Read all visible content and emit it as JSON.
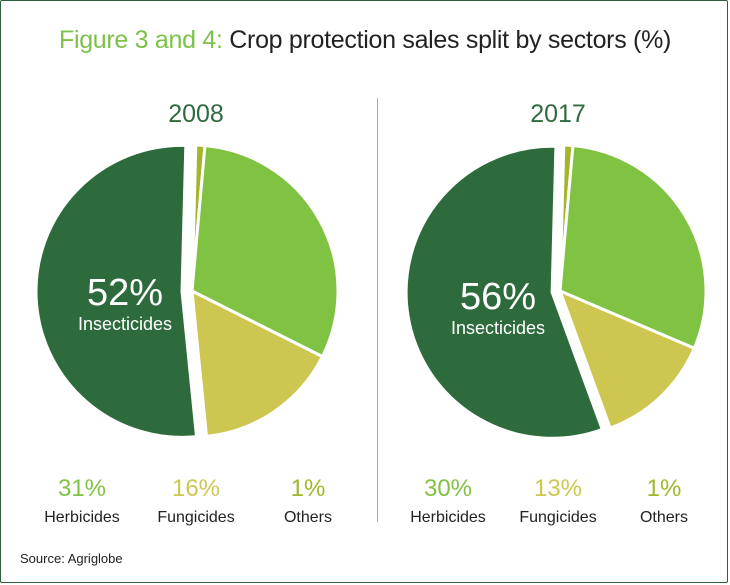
{
  "title": {
    "prefix": "Figure 3 and 4:",
    "rest": "Crop protection sales split by sectors (%)"
  },
  "source": "Source: Agriglobe",
  "colors": {
    "insecticides": "#2e6b3c",
    "herbicides": "#80c342",
    "fungicides": "#cdc751",
    "others": "#a3b52a"
  },
  "chart_data": [
    {
      "type": "pie",
      "title": "2008",
      "slices": [
        {
          "label": "Insecticides",
          "value": 52,
          "display": "52%"
        },
        {
          "label": "Herbicides",
          "value": 31,
          "display": "31%"
        },
        {
          "label": "Fungicides",
          "value": 16,
          "display": "16%"
        },
        {
          "label": "Others",
          "value": 1,
          "display": "1%"
        }
      ]
    },
    {
      "type": "pie",
      "title": "2017",
      "slices": [
        {
          "label": "Insecticides",
          "value": 56,
          "display": "56%"
        },
        {
          "label": "Herbicides",
          "value": 30,
          "display": "30%"
        },
        {
          "label": "Fungicides",
          "value": 13,
          "display": "13%"
        },
        {
          "label": "Others",
          "value": 1,
          "display": "1%"
        }
      ]
    }
  ]
}
